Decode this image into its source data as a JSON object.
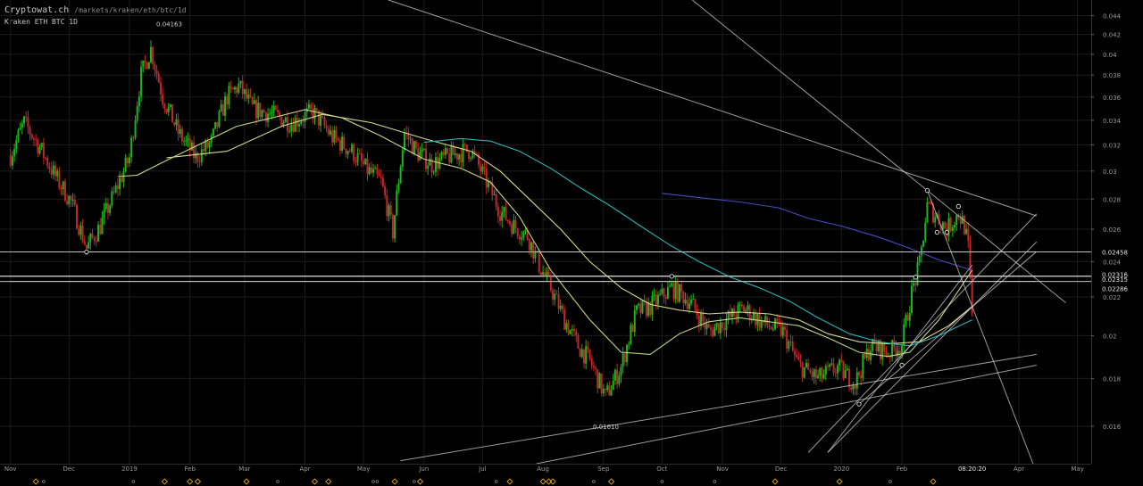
{
  "header": {
    "brand": "Cryptowat.ch",
    "path": "/markets/kraken/eth/btc/1d",
    "market": "Kraken ETH BTC 1D"
  },
  "colors": {
    "background": "#000000",
    "grid": "#1c1c1c",
    "candle_up": "#1fb31f",
    "candle_down": "#c0262b",
    "ma_fast": "#c2d784",
    "ma_mid": "#d9d98a",
    "ma_teal": "#2bb3b3",
    "ma_slow": "#4a4ac2",
    "trendline": "#cfcfcf",
    "level_line": "#e0e0e0",
    "marker": "#d4a017"
  },
  "chart_data": {
    "type": "candlestick",
    "market": "Kraken ETH BTC 1D",
    "x_axis": {
      "labels": [
        "Nov",
        "Dec",
        "2019",
        "Feb",
        "Mar",
        "Apr",
        "May",
        "Jun",
        "Jul",
        "Aug",
        "Sep",
        "Oct",
        "Nov",
        "Dec",
        "2020",
        "Feb",
        "Apr",
        "May"
      ],
      "current_time_label": "08:20:20"
    },
    "y_axis": {
      "scale": "log",
      "range": [
        0.015,
        0.0455
      ],
      "ticks": [
        0.016,
        0.018,
        0.02,
        0.022,
        0.024,
        0.026,
        0.028,
        0.03,
        0.032,
        0.034,
        0.036,
        0.038,
        0.04,
        0.042,
        0.044
      ],
      "tick_labels": [
        "0.016",
        "0.018",
        "0.02",
        "0.022",
        "0.024",
        "0.026",
        "0.028",
        "0.03",
        "0.032",
        "0.034",
        "0.036",
        "0.038",
        "0.04",
        "0.042",
        "0.044"
      ],
      "special_labels": [
        "0.02458",
        "0.02316",
        "0.02315",
        "0.02286"
      ]
    },
    "annotations": [
      {
        "label": "0.04163",
        "date": "2019-01-12",
        "value": 0.04163
      },
      {
        "label": "0.01610",
        "date": "2019-09-02",
        "value": 0.0161
      }
    ],
    "horizontal_levels": [
      0.02458,
      0.02316,
      0.02315,
      0.02286
    ],
    "anchor_points": [
      {
        "date": "2018-12-10",
        "value": 0.02458
      },
      {
        "date": "2019-10-06",
        "value": 0.02315
      },
      {
        "date": "2020-01-10",
        "value": 0.0169
      },
      {
        "date": "2020-02-01",
        "value": 0.0186
      },
      {
        "date": "2020-02-08",
        "value": 0.0231
      },
      {
        "date": "2020-02-14",
        "value": 0.0286
      },
      {
        "date": "2020-02-19",
        "value": 0.0258
      },
      {
        "date": "2020-02-24",
        "value": 0.0258
      },
      {
        "date": "2020-03-01",
        "value": 0.0275
      }
    ],
    "close_path": [
      [
        "2018-11-01",
        0.0312
      ],
      [
        "2018-11-08",
        0.0338
      ],
      [
        "2018-11-16",
        0.0318
      ],
      [
        "2018-11-24",
        0.0296
      ],
      [
        "2018-12-02",
        0.0278
      ],
      [
        "2018-12-10",
        0.0248
      ],
      [
        "2018-12-17",
        0.0262
      ],
      [
        "2018-12-24",
        0.0283
      ],
      [
        "2019-01-01",
        0.031
      ],
      [
        "2019-01-07",
        0.038
      ],
      [
        "2019-01-12",
        0.0405
      ],
      [
        "2019-01-18",
        0.036
      ],
      [
        "2019-01-26",
        0.033
      ],
      [
        "2019-02-04",
        0.031
      ],
      [
        "2019-02-12",
        0.0322
      ],
      [
        "2019-02-20",
        0.036
      ],
      [
        "2019-02-26",
        0.037
      ],
      [
        "2019-03-05",
        0.035
      ],
      [
        "2019-03-15",
        0.0345
      ],
      [
        "2019-03-25",
        0.0338
      ],
      [
        "2019-04-05",
        0.0347
      ],
      [
        "2019-04-15",
        0.0326
      ],
      [
        "2019-04-25",
        0.0315
      ],
      [
        "2019-05-02",
        0.0302
      ],
      [
        "2019-05-10",
        0.0292
      ],
      [
        "2019-05-16",
        0.0258
      ],
      [
        "2019-05-22",
        0.033
      ],
      [
        "2019-05-28",
        0.0315
      ],
      [
        "2019-06-05",
        0.0305
      ],
      [
        "2019-06-15",
        0.0312
      ],
      [
        "2019-06-25",
        0.0316
      ],
      [
        "2019-07-03",
        0.0292
      ],
      [
        "2019-07-10",
        0.0272
      ],
      [
        "2019-07-17",
        0.0262
      ],
      [
        "2019-07-24",
        0.0256
      ],
      [
        "2019-07-30",
        0.0238
      ],
      [
        "2019-08-05",
        0.0225
      ],
      [
        "2019-08-12",
        0.0208
      ],
      [
        "2019-08-19",
        0.0195
      ],
      [
        "2019-08-25",
        0.0188
      ],
      [
        "2019-09-02",
        0.0172
      ],
      [
        "2019-09-10",
        0.0185
      ],
      [
        "2019-09-18",
        0.0212
      ],
      [
        "2019-09-25",
        0.0215
      ],
      [
        "2019-10-06",
        0.0225
      ],
      [
        "2019-10-15",
        0.0218
      ],
      [
        "2019-10-25",
        0.0202
      ],
      [
        "2019-11-03",
        0.0208
      ],
      [
        "2019-11-12",
        0.0214
      ],
      [
        "2019-11-22",
        0.0206
      ],
      [
        "2019-12-02",
        0.0202
      ],
      [
        "2019-12-10",
        0.0186
      ],
      [
        "2019-12-20",
        0.018
      ],
      [
        "2019-12-30",
        0.0185
      ],
      [
        "2020-01-08",
        0.0178
      ],
      [
        "2020-01-16",
        0.0195
      ],
      [
        "2020-01-25",
        0.0192
      ],
      [
        "2020-02-01",
        0.0196
      ],
      [
        "2020-02-06",
        0.0222
      ],
      [
        "2020-02-10",
        0.0238
      ],
      [
        "2020-02-14",
        0.0275
      ],
      [
        "2020-02-19",
        0.0268
      ],
      [
        "2020-02-24",
        0.026
      ],
      [
        "2020-03-01",
        0.027
      ],
      [
        "2020-03-04",
        0.0262
      ],
      [
        "2020-03-06",
        0.0248
      ],
      [
        "2020-03-08",
        0.021
      ]
    ],
    "moving_averages": [
      {
        "color_key": "ma_fast",
        "points": [
          [
            "2018-12-26",
            0.0296
          ],
          [
            "2019-01-05",
            0.0297
          ],
          [
            "2019-01-20",
            0.0308
          ],
          [
            "2019-02-08",
            0.0322
          ],
          [
            "2019-02-25",
            0.0335
          ],
          [
            "2019-03-15",
            0.0342
          ],
          [
            "2019-04-01",
            0.0349
          ],
          [
            "2019-04-20",
            0.0342
          ],
          [
            "2019-05-10",
            0.0327
          ],
          [
            "2019-06-01",
            0.0309
          ],
          [
            "2019-06-20",
            0.0302
          ],
          [
            "2019-07-05",
            0.0292
          ],
          [
            "2019-07-20",
            0.0268
          ],
          [
            "2019-08-05",
            0.0235
          ],
          [
            "2019-08-25",
            0.0208
          ],
          [
            "2019-09-10",
            0.0192
          ],
          [
            "2019-09-25",
            0.0191
          ],
          [
            "2019-10-10",
            0.0201
          ],
          [
            "2019-10-25",
            0.0207
          ],
          [
            "2019-11-10",
            0.0209
          ],
          [
            "2019-11-25",
            0.0207
          ],
          [
            "2019-12-10",
            0.0205
          ],
          [
            "2019-12-25",
            0.0199
          ],
          [
            "2020-01-10",
            0.0192
          ],
          [
            "2020-01-25",
            0.019
          ],
          [
            "2020-02-05",
            0.0192
          ],
          [
            "2020-02-20",
            0.0208
          ],
          [
            "2020-03-08",
            0.0235
          ]
        ]
      },
      {
        "color_key": "ma_mid",
        "points": [
          [
            "2019-01-20",
            0.031
          ],
          [
            "2019-02-20",
            0.0315
          ],
          [
            "2019-03-20",
            0.0335
          ],
          [
            "2019-04-10",
            0.0345
          ],
          [
            "2019-05-05",
            0.0338
          ],
          [
            "2019-06-01",
            0.0325
          ],
          [
            "2019-06-25",
            0.0315
          ],
          [
            "2019-07-10",
            0.03
          ],
          [
            "2019-07-25",
            0.028
          ],
          [
            "2019-08-10",
            0.026
          ],
          [
            "2019-08-25",
            0.024
          ],
          [
            "2019-09-10",
            0.0225
          ],
          [
            "2019-09-25",
            0.0216
          ],
          [
            "2019-10-10",
            0.0213
          ],
          [
            "2019-10-25",
            0.0211
          ],
          [
            "2019-11-10",
            0.0212
          ],
          [
            "2019-11-25",
            0.0211
          ],
          [
            "2019-12-10",
            0.0208
          ],
          [
            "2019-12-25",
            0.0201
          ],
          [
            "2020-01-10",
            0.0197
          ],
          [
            "2020-01-25",
            0.0196
          ],
          [
            "2020-02-10",
            0.0197
          ],
          [
            "2020-02-25",
            0.0205
          ],
          [
            "2020-03-08",
            0.0215
          ]
        ]
      },
      {
        "color_key": "ma_teal",
        "points": [
          [
            "2019-06-01",
            0.0322
          ],
          [
            "2019-06-20",
            0.0325
          ],
          [
            "2019-07-05",
            0.0323
          ],
          [
            "2019-07-20",
            0.0315
          ],
          [
            "2019-08-05",
            0.0302
          ],
          [
            "2019-08-20",
            0.0288
          ],
          [
            "2019-09-05",
            0.0275
          ],
          [
            "2019-09-20",
            0.0262
          ],
          [
            "2019-10-05",
            0.025
          ],
          [
            "2019-10-20",
            0.024
          ],
          [
            "2019-11-05",
            0.0231
          ],
          [
            "2019-11-20",
            0.0225
          ],
          [
            "2019-12-05",
            0.0218
          ],
          [
            "2019-12-20",
            0.0209
          ],
          [
            "2020-01-05",
            0.0201
          ],
          [
            "2020-01-20",
            0.0197
          ],
          [
            "2020-02-05",
            0.0195
          ],
          [
            "2020-02-20",
            0.02
          ],
          [
            "2020-03-08",
            0.0208
          ]
        ]
      },
      {
        "color_key": "ma_slow",
        "points": [
          [
            "2019-10-01",
            0.0284
          ],
          [
            "2019-10-20",
            0.0281
          ],
          [
            "2019-11-10",
            0.0278
          ],
          [
            "2019-11-30",
            0.0274
          ],
          [
            "2019-12-15",
            0.0267
          ],
          [
            "2020-01-01",
            0.0262
          ],
          [
            "2020-01-20",
            0.0255
          ],
          [
            "2020-02-05",
            0.0248
          ],
          [
            "2020-02-20",
            0.0241
          ],
          [
            "2020-03-08",
            0.0235
          ]
        ]
      }
    ],
    "trendlines": [
      {
        "from": [
          "2018-12-10",
          0.02458
        ],
        "to": [
          "2020-04-10",
          0.02458
        ]
      },
      {
        "from": [
          "2018-11-01",
          0.02316
        ],
        "to": [
          "2020-04-10",
          0.02316
        ]
      },
      {
        "from": [
          "2018-11-01",
          0.02286
        ],
        "to": [
          "2020-04-10",
          0.02286
        ]
      },
      {
        "from": [
          "2019-05-20",
          0.0147
        ],
        "to": [
          "2020-04-10",
          0.0191
        ]
      },
      {
        "from": [
          "2019-06-30",
          0.0142
        ],
        "to": [
          "2020-04-10",
          0.0186
        ]
      },
      {
        "from": [
          "2019-05-10",
          0.046
        ],
        "to": [
          "2020-02-01",
          0.03
        ],
        "extend_to": "2020-04-10"
      },
      {
        "from": [
          "2019-10-15",
          0.046
        ],
        "to": [
          "2020-02-14",
          0.0286
        ],
        "extend_to": "2020-04-25"
      },
      {
        "from": [
          "2020-02-14",
          0.0286
        ],
        "to": [
          "2020-03-08",
          0.0215
        ],
        "extend_to": "2020-04-20"
      },
      {
        "from": [
          "2019-12-15",
          0.015
        ],
        "to": [
          "2020-04-10",
          0.027
        ]
      },
      {
        "from": [
          "2019-12-25",
          0.015
        ],
        "to": [
          "2020-04-10",
          0.0252
        ]
      },
      {
        "from": [
          "2020-01-10",
          0.0169
        ],
        "to": [
          "2020-04-10",
          0.0246
        ]
      },
      {
        "from": [
          "2019-12-25",
          0.015
        ],
        "to": [
          "2020-03-08",
          0.0238
        ]
      }
    ],
    "event_markers": [
      "2018-11-14",
      "2019-01-19",
      "2019-02-01",
      "2019-02-05",
      "2019-03-02",
      "2019-04-06",
      "2019-04-13",
      "2019-05-17",
      "2019-05-30",
      "2019-07-15",
      "2019-08-01",
      "2019-08-04",
      "2019-08-06",
      "2019-09-05",
      "2019-11-28",
      "2019-12-31",
      "2020-02-17"
    ],
    "gray_markers": [
      "2018-11-18",
      "2019-01-03",
      "2019-03-18",
      "2019-05-06",
      "2019-05-08",
      "2019-05-27",
      "2019-07-08",
      "2019-08-27",
      "2019-10-01",
      "2019-10-28",
      "2020-01-26"
    ]
  }
}
